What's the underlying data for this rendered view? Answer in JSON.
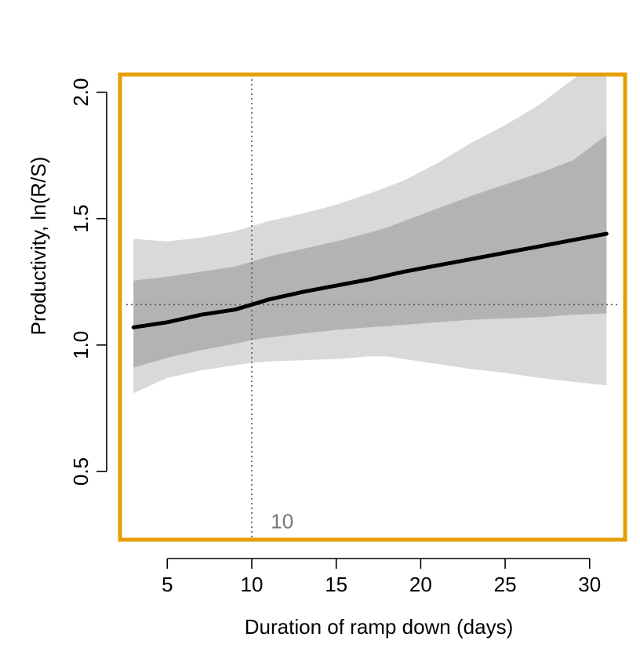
{
  "chart_data": {
    "type": "line",
    "title": "",
    "xlabel": "Duration of ramp down (days)",
    "ylabel": "Productivity, ln(R/S)",
    "xlim": [
      2.2,
      32.1
    ],
    "ylim": [
      0.23,
      2.07
    ],
    "xticks": [
      5,
      10,
      15,
      20,
      25,
      30
    ],
    "yticks": [
      0.5,
      1.0,
      1.5,
      2.0
    ],
    "xtick_labels": [
      "5",
      "10",
      "15",
      "20",
      "25",
      "30"
    ],
    "ytick_labels": [
      "0.5",
      "1.0",
      "1.5",
      "2.0"
    ],
    "grid": false,
    "legend": "none",
    "colors": {
      "frame": "#E69F00",
      "outer_band": "#D9D9D9",
      "inner_band": "#B3B3B3",
      "mean_line": "#000000",
      "reference_lines": "#555555",
      "annotation": "#777777"
    },
    "x": [
      3,
      5,
      7,
      9,
      10,
      11,
      13,
      15,
      17,
      18,
      19,
      21,
      23,
      25,
      27,
      29,
      31
    ],
    "series": [
      {
        "values": [
          1.07,
          1.09,
          1.12,
          1.14,
          1.16,
          1.18,
          1.21,
          1.235,
          1.26,
          1.275,
          1.29,
          1.315,
          1.34,
          1.365,
          1.39,
          1.415,
          1.44
        ]
      }
    ],
    "bands": [
      {
        "level": "outer",
        "lower": [
          0.81,
          0.87,
          0.9,
          0.92,
          0.93,
          0.935,
          0.94,
          0.945,
          0.955,
          0.955,
          0.945,
          0.925,
          0.905,
          0.89,
          0.87,
          0.855,
          0.84
        ],
        "upper": [
          1.42,
          1.41,
          1.425,
          1.45,
          1.47,
          1.49,
          1.52,
          1.555,
          1.6,
          1.625,
          1.65,
          1.72,
          1.8,
          1.87,
          1.95,
          2.05,
          2.15
        ]
      },
      {
        "level": "inner",
        "lower": [
          0.91,
          0.95,
          0.98,
          1.005,
          1.02,
          1.03,
          1.045,
          1.06,
          1.07,
          1.075,
          1.08,
          1.09,
          1.1,
          1.105,
          1.11,
          1.12,
          1.125
        ],
        "upper": [
          1.255,
          1.27,
          1.29,
          1.31,
          1.33,
          1.35,
          1.38,
          1.41,
          1.445,
          1.465,
          1.49,
          1.54,
          1.59,
          1.635,
          1.68,
          1.73,
          1.83
        ]
      }
    ],
    "reference_lines": {
      "vertical_x": 10,
      "horizontal_y": 1.16
    },
    "annotations": [
      {
        "text": "10",
        "x": 11.8,
        "y": 0.3
      }
    ]
  }
}
